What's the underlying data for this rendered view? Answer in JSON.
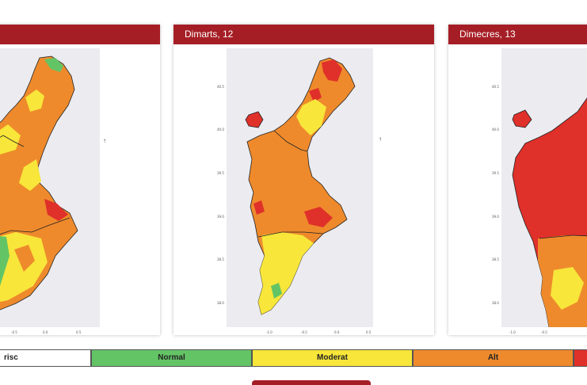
{
  "cards": [
    {
      "title": ""
    },
    {
      "title": "Dimarts, 12"
    },
    {
      "title": "Dimecres, 13"
    }
  ],
  "y_ticks": [
    "40.5",
    "40.0",
    "39.5",
    "39.0",
    "38.5",
    "38.0"
  ],
  "x_ticks": [
    "-1.0",
    "-0.5",
    "0.0",
    "0.5"
  ],
  "legend": [
    {
      "label": "risc",
      "color": "#ffffff"
    },
    {
      "label": "Normal",
      "color": "#63c466"
    },
    {
      "label": "Moderat",
      "color": "#f8e63a"
    },
    {
      "label": "Alt",
      "color": "#ee8a2c"
    },
    {
      "label": "",
      "color": "#e0302a"
    }
  ],
  "colors": {
    "header": "#a61e25",
    "plot_bg": "#ebebf0",
    "normal": "#63c466",
    "moderat": "#f8e63a",
    "alt": "#ee8a2c",
    "molt_alt": "#e0302a",
    "border": "#222222"
  }
}
